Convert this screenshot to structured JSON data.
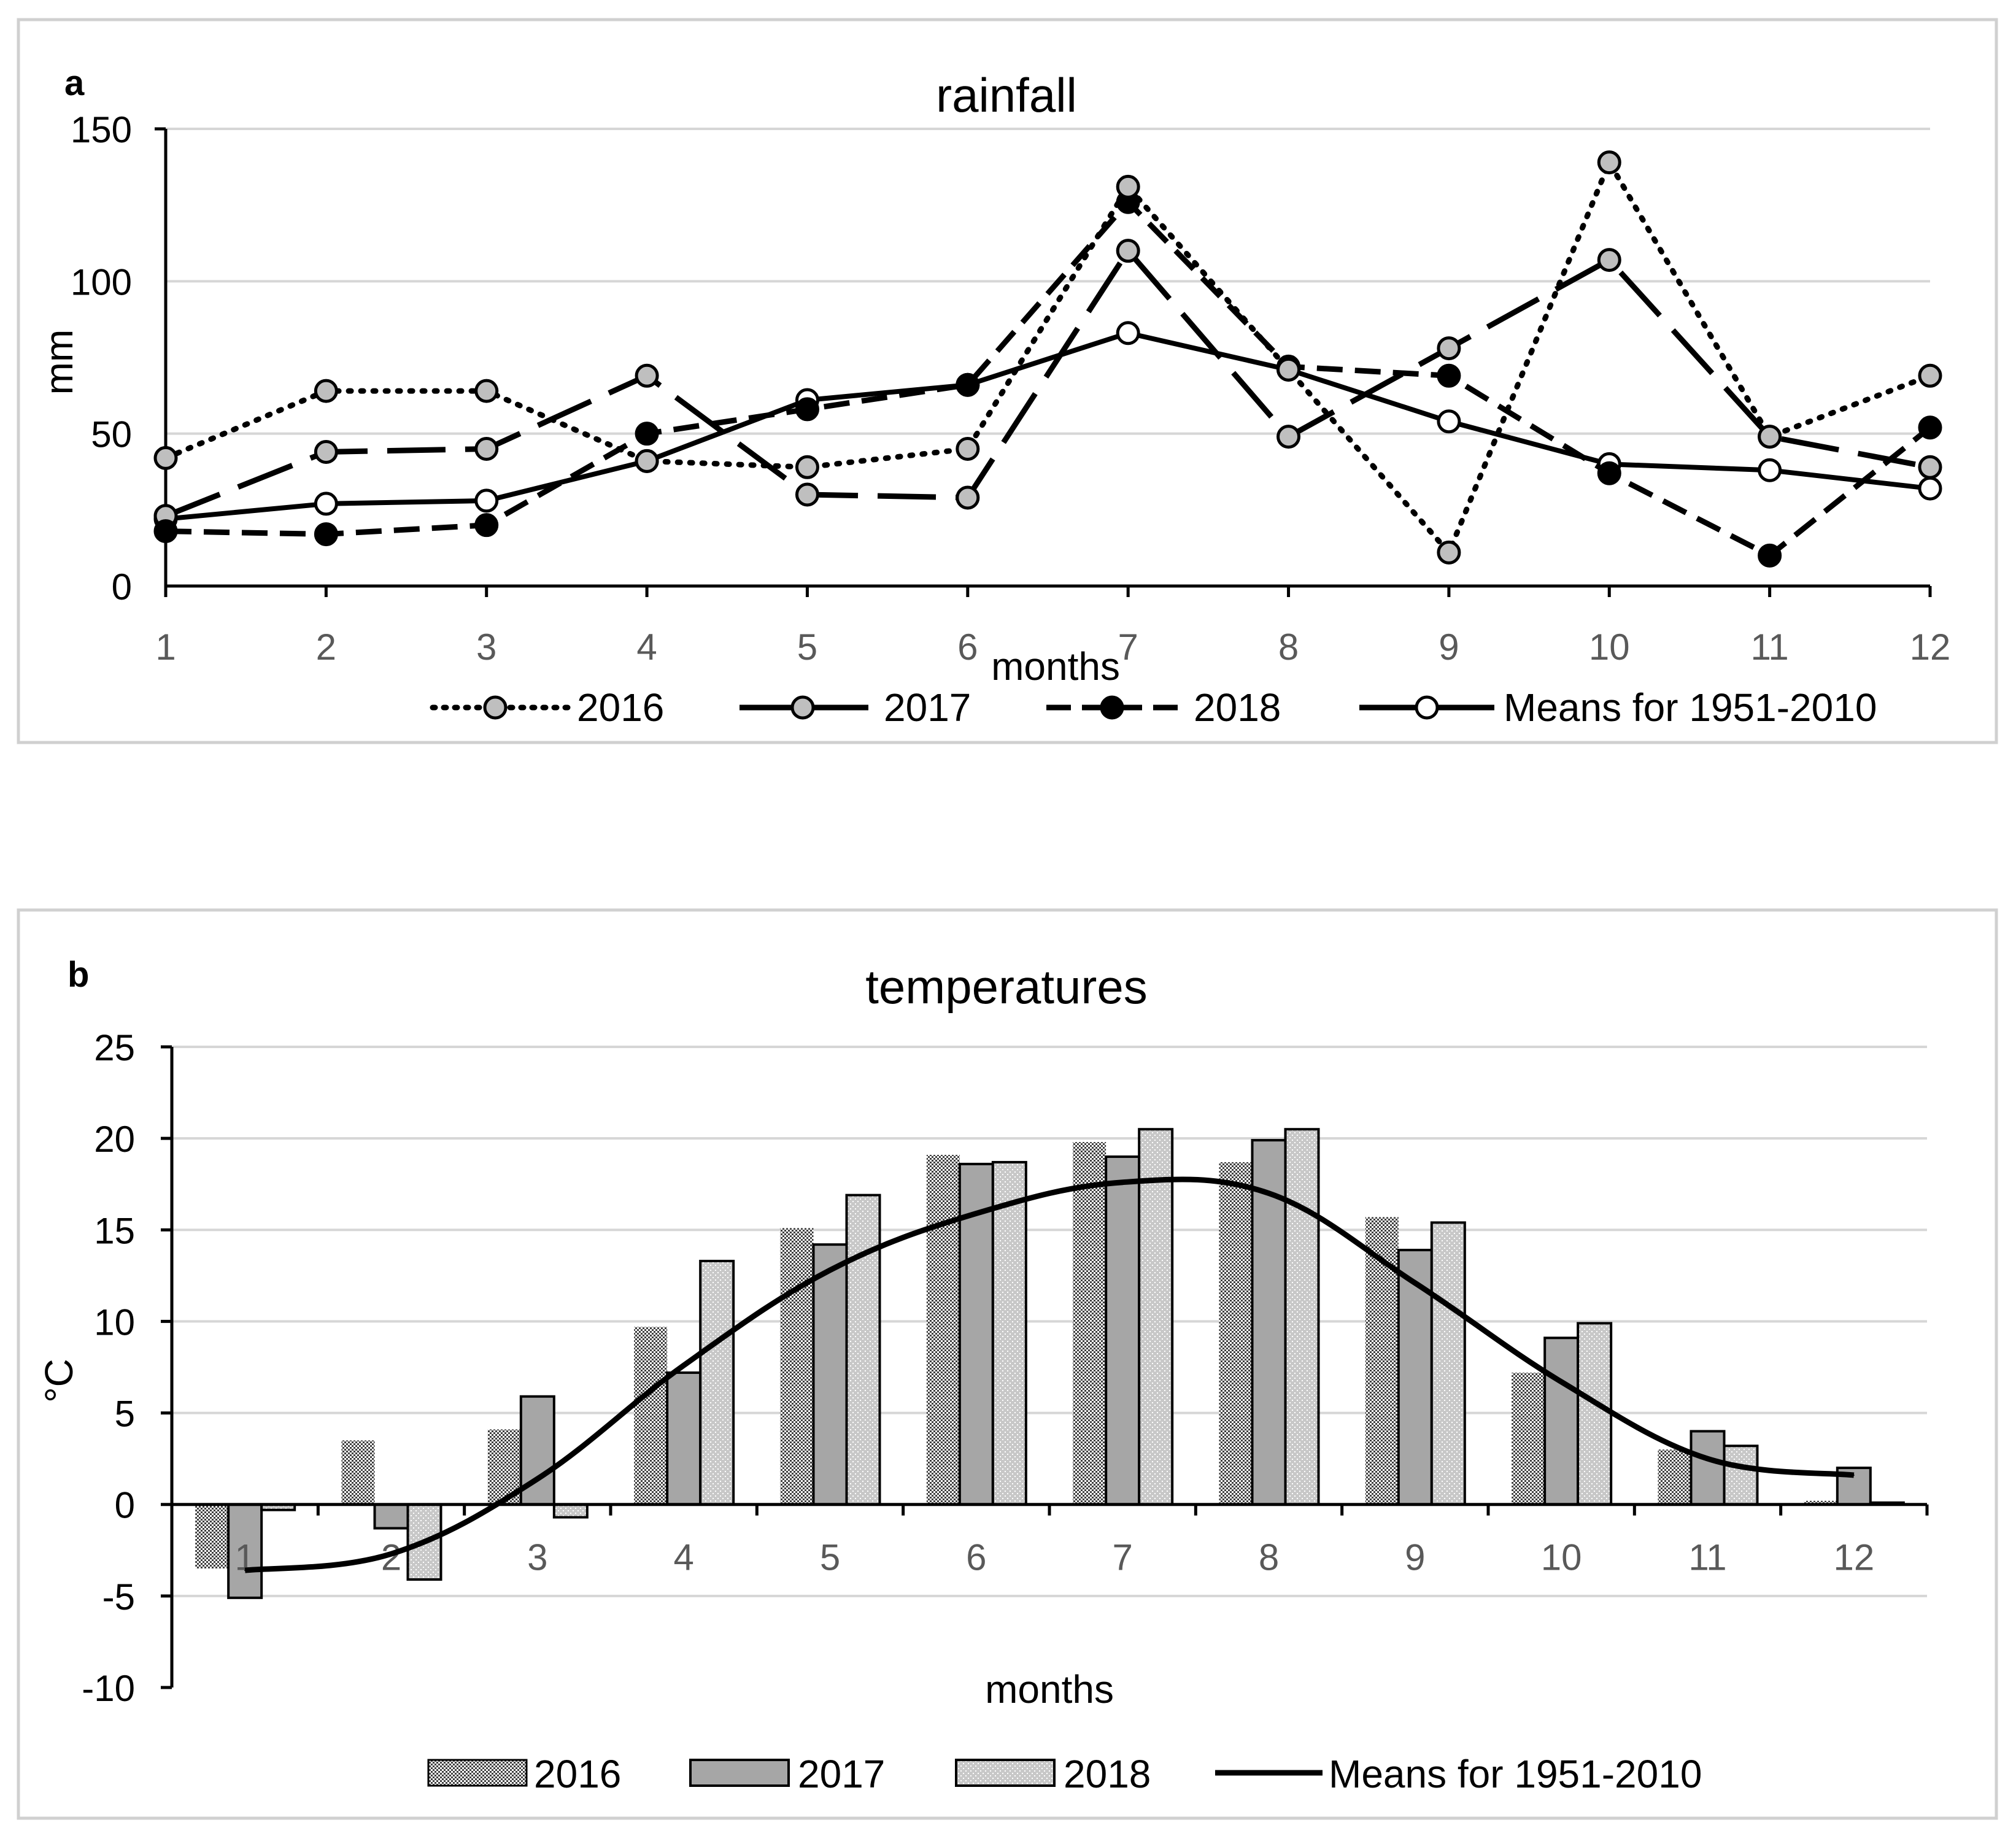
{
  "colors": {
    "frame": "#d0d0d0",
    "grid": "#d6d6d6",
    "axis": "#000000",
    "tick_text": "#595959",
    "marker_gray": "#bfbfbf",
    "marker_white": "#ffffff",
    "bar_2017": "#a6a6a6",
    "bar_2016_dots": "#3f3f3f",
    "bar_2018_fill": "#c8c8c8"
  },
  "chart_data": [
    {
      "type": "line",
      "panel_letter": "a",
      "title": "rainfall",
      "xlabel": "months",
      "ylabel": "mm",
      "categories": [
        "1",
        "2",
        "3",
        "4",
        "5",
        "6",
        "7",
        "8",
        "9",
        "10",
        "11",
        "12"
      ],
      "y_ticks": [
        "0",
        "50",
        "100",
        "150"
      ],
      "ylim": [
        0,
        150
      ],
      "grid": true,
      "legend_position": "bottom",
      "series": [
        {
          "name": "2016",
          "style": "dotted",
          "marker": "gray",
          "values": [
            42,
            64,
            64,
            41,
            39,
            45,
            131,
            71,
            11,
            139,
            49,
            69
          ]
        },
        {
          "name": "2017",
          "style": "long-dash",
          "marker": "gray",
          "values": [
            23,
            44,
            45,
            69,
            30,
            29,
            110,
            49,
            78,
            107,
            49,
            39
          ]
        },
        {
          "name": "2018",
          "style": "dash",
          "marker": "black",
          "values": [
            18,
            17,
            20,
            50,
            58,
            66,
            126,
            72,
            69,
            37,
            10,
            52
          ]
        },
        {
          "name": "Means for 1951-2010",
          "style": "solid",
          "marker": "white",
          "values": [
            22,
            27,
            28,
            41,
            61,
            66,
            83,
            71,
            54,
            40,
            38,
            32
          ]
        }
      ]
    },
    {
      "type": "bar",
      "panel_letter": "b",
      "title": "temperatures",
      "xlabel": "months",
      "ylabel": "°C",
      "categories": [
        "1",
        "2",
        "3",
        "4",
        "5",
        "6",
        "7",
        "8",
        "9",
        "10",
        "11",
        "12"
      ],
      "y_ticks": [
        "-10",
        "-5",
        "0",
        "5",
        "10",
        "15",
        "20",
        "25"
      ],
      "ylim": [
        -10,
        25
      ],
      "grid": true,
      "legend_position": "bottom",
      "series": [
        {
          "name": "2016",
          "kind": "bar",
          "pattern": "dark-dots",
          "values": [
            -3.5,
            3.5,
            4.1,
            9.7,
            15.1,
            19.1,
            19.8,
            18.7,
            15.7,
            7.2,
            3.0,
            0.2
          ]
        },
        {
          "name": "2017",
          "kind": "bar",
          "pattern": "solid-gray",
          "values": [
            -5.1,
            -1.3,
            5.9,
            7.2,
            14.2,
            18.6,
            19.0,
            19.9,
            13.9,
            9.1,
            4.0,
            2.0
          ]
        },
        {
          "name": "2018",
          "kind": "bar",
          "pattern": "light-dots",
          "values": [
            -0.3,
            -4.1,
            -0.7,
            13.3,
            16.9,
            18.7,
            20.5,
            20.5,
            15.4,
            9.9,
            3.2,
            0.1
          ]
        },
        {
          "name": "Means for 1951-2010",
          "kind": "line",
          "values": [
            -3.6,
            -2.7,
            1.4,
            7.6,
            12.8,
            15.9,
            17.6,
            17.0,
            12.1,
            6.7,
            2.5,
            1.6
          ]
        }
      ]
    }
  ]
}
